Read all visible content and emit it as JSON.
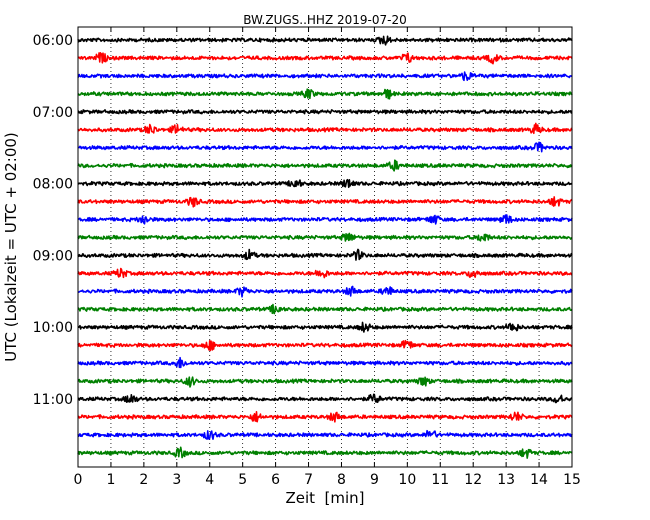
{
  "chart_data": {
    "type": "line",
    "title": "BW.ZUGS..HHZ 2019-07-20",
    "xlabel": "Zeit  [min]",
    "ylabel": "UTC (Lokalzeit = UTC + 02:00)",
    "xlim": [
      0,
      15
    ],
    "x_ticks": [
      "0",
      "1",
      "2",
      "3",
      "4",
      "5",
      "6",
      "7",
      "8",
      "9",
      "10",
      "11",
      "12",
      "13",
      "14",
      "15"
    ],
    "y_tick_labels": [
      "06:00",
      "07:00",
      "08:00",
      "09:00",
      "10:00",
      "11:00"
    ],
    "row_start_times": [
      "06:00",
      "06:15",
      "06:30",
      "06:45",
      "07:00",
      "07:15",
      "07:30",
      "07:45",
      "08:00",
      "08:15",
      "08:30",
      "08:45",
      "09:00",
      "09:15",
      "09:30",
      "09:45",
      "10:00",
      "10:15",
      "10:30",
      "10:45",
      "11:00",
      "11:15",
      "11:30",
      "11:45"
    ],
    "grid": "vertical dotted at each minute",
    "trace_colors": [
      "#000000",
      "#ff0000",
      "#0000ff",
      "#008000"
    ],
    "series": [
      {
        "row": "06:00",
        "color": "#000000",
        "events_min": [
          9.3
        ]
      },
      {
        "row": "06:15",
        "color": "#ff0000",
        "events_min": [
          0.7,
          10.0,
          12.6
        ]
      },
      {
        "row": "06:30",
        "color": "#0000ff",
        "events_min": [
          11.8
        ]
      },
      {
        "row": "06:45",
        "color": "#008000",
        "events_min": [
          7.0,
          9.4
        ]
      },
      {
        "row": "07:00",
        "color": "#000000",
        "events_min": []
      },
      {
        "row": "07:15",
        "color": "#ff0000",
        "events_min": [
          2.2,
          3.0,
          13.9
        ]
      },
      {
        "row": "07:30",
        "color": "#0000ff",
        "events_min": [
          14.0
        ]
      },
      {
        "row": "07:45",
        "color": "#008000",
        "events_min": [
          9.6
        ]
      },
      {
        "row": "08:00",
        "color": "#000000",
        "events_min": [
          6.6,
          8.2
        ]
      },
      {
        "row": "08:15",
        "color": "#ff0000",
        "events_min": [
          3.5,
          14.5
        ]
      },
      {
        "row": "08:30",
        "color": "#0000ff",
        "events_min": [
          2.0,
          10.8,
          13.0
        ]
      },
      {
        "row": "08:45",
        "color": "#008000",
        "events_min": [
          8.2,
          12.3
        ]
      },
      {
        "row": "09:00",
        "color": "#000000",
        "events_min": [
          5.2,
          8.5
        ]
      },
      {
        "row": "09:15",
        "color": "#ff0000",
        "events_min": [
          1.3,
          7.4,
          12.0
        ]
      },
      {
        "row": "09:30",
        "color": "#0000ff",
        "events_min": [
          5.0,
          8.3,
          9.4
        ]
      },
      {
        "row": "09:45",
        "color": "#008000",
        "events_min": [
          6.0
        ]
      },
      {
        "row": "10:00",
        "color": "#000000",
        "events_min": [
          8.7,
          13.2
        ]
      },
      {
        "row": "10:15",
        "color": "#ff0000",
        "events_min": [
          4.0,
          10.0
        ]
      },
      {
        "row": "10:30",
        "color": "#0000ff",
        "events_min": [
          3.1
        ]
      },
      {
        "row": "10:45",
        "color": "#008000",
        "events_min": [
          3.4,
          10.5
        ]
      },
      {
        "row": "11:00",
        "color": "#000000",
        "events_min": [
          1.6,
          9.0,
          14.6
        ]
      },
      {
        "row": "11:15",
        "color": "#ff0000",
        "events_min": [
          5.4,
          7.8,
          13.3
        ]
      },
      {
        "row": "11:30",
        "color": "#0000ff",
        "events_min": [
          4.0,
          10.7
        ]
      },
      {
        "row": "11:45",
        "color": "#008000",
        "events_min": [
          3.1,
          13.6
        ]
      }
    ]
  }
}
